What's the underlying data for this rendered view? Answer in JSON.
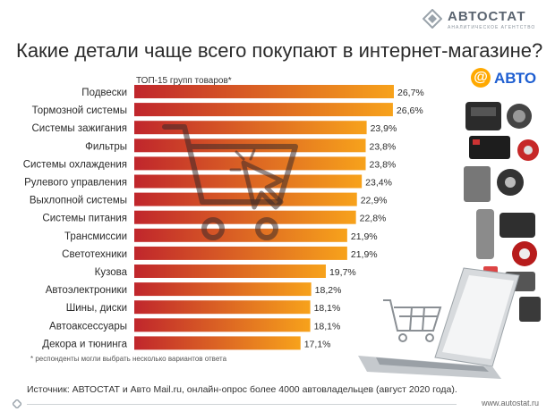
{
  "header": {
    "logo_text": "АВТОСТАТ",
    "logo_sub": "АНАЛИТИЧЕСКОЕ АГЕНТСТВО",
    "title": "Какие детали чаще всего покупают в интернет-магазине?"
  },
  "partner": {
    "at_symbol": "@",
    "name": "АВТО"
  },
  "chart_data": {
    "type": "bar",
    "orientation": "horizontal",
    "subtitle": "ТОП-15 групп товаров*",
    "categories": [
      "Подвески",
      "Тормозной системы",
      "Системы зажигания",
      "Фильтры",
      "Системы охлаждения",
      "Рулевого управления",
      "Выхлопной системы",
      "Системы питания",
      "Трансмиссии",
      "Светотехники",
      "Кузова",
      "Автоэлектроники",
      "Шины, диски",
      "Автоаксессуары",
      "Декора и тюнинга"
    ],
    "values": [
      26.7,
      26.6,
      23.9,
      23.8,
      23.8,
      23.4,
      22.9,
      22.8,
      21.9,
      21.9,
      19.7,
      18.2,
      18.1,
      18.1,
      17.1
    ],
    "value_labels": [
      "26,7%",
      "26,6%",
      "23,9%",
      "23,8%",
      "23,8%",
      "23,4%",
      "22,9%",
      "22,8%",
      "21,9%",
      "21,9%",
      "19,7%",
      "18,2%",
      "18,1%",
      "18,1%",
      "17,1%"
    ],
    "unit": "%",
    "xlim": [
      0,
      26.7
    ],
    "colors": {
      "bar_start": "#c0262c",
      "bar_end": "#f7a21b"
    }
  },
  "footnote": "* респонденты могли выбрать несколько вариантов ответа",
  "source": "Источник: АВТОСТАТ и Авто Mail.ru, онлайн-опрос более 4000 автовладельцев (август 2020 года).",
  "footer_url": "www.autostat.ru"
}
